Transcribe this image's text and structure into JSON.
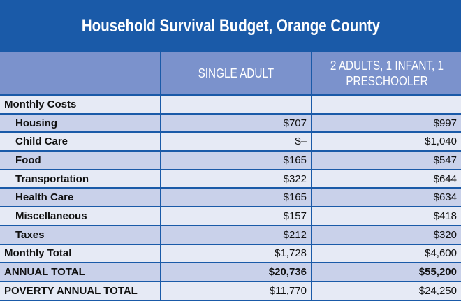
{
  "title": "Household Survival Budget, Orange County",
  "header": {
    "col1": "SINGLE ADULT",
    "col2": "2 ADULTS, 1 INFANT, 1 PRESCHOOLER"
  },
  "rows": [
    {
      "label": "Monthly Costs",
      "single": "",
      "family": ""
    },
    {
      "label": "Housing",
      "single": "$707",
      "family": "$997"
    },
    {
      "label": "Child Care",
      "single": "$–",
      "family": "$1,040"
    },
    {
      "label": "Food",
      "single": "$165",
      "family": "$547"
    },
    {
      "label": "Transportation",
      "single": "$322",
      "family": "$644"
    },
    {
      "label": "Health Care",
      "single": "$165",
      "family": "$634"
    },
    {
      "label": "Miscellaneous",
      "single": "$157",
      "family": "$418"
    },
    {
      "label": "Taxes",
      "single": "$212",
      "family": "$320"
    },
    {
      "label": "Monthly Total",
      "single": "$1,728",
      "family": "$4,600"
    },
    {
      "label": "ANNUAL TOTAL",
      "single": "$20,736",
      "family": "$55,200"
    },
    {
      "label": "POVERTY ANNUAL TOTAL",
      "single": "$11,770",
      "family": "$24,250"
    }
  ],
  "colors": {
    "title_bar": "#1a5aa8",
    "header_row": "#7b92cc",
    "row_light": "#e6eaf5",
    "row_dark": "#c9d1ea"
  }
}
